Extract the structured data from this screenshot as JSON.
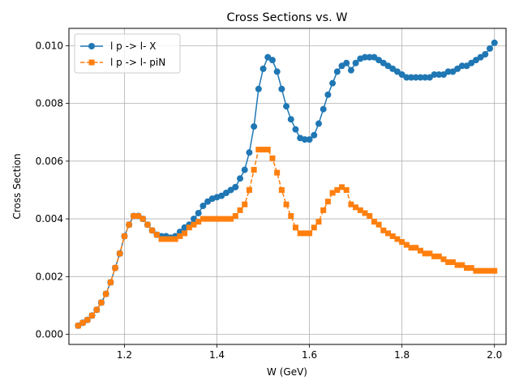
{
  "chart_data": {
    "type": "line",
    "title": "Cross Sections vs. W",
    "xlabel": "W (GeV)",
    "ylabel": "Cross Section",
    "xlim": [
      1.08,
      2.025
    ],
    "ylim": [
      -0.00035,
      0.0106
    ],
    "xticks": [
      1.2,
      1.4,
      1.6,
      1.8,
      2.0
    ],
    "xtick_labels": [
      "1.2",
      "1.4",
      "1.6",
      "1.8",
      "2.0"
    ],
    "yticks": [
      0.0,
      0.002,
      0.004,
      0.006,
      0.008,
      0.01
    ],
    "ytick_labels": [
      "0.000",
      "0.002",
      "0.004",
      "0.006",
      "0.008",
      "0.010"
    ],
    "grid": true,
    "legend": "top-left",
    "x": [
      1.1,
      1.11,
      1.12,
      1.13,
      1.14,
      1.15,
      1.16,
      1.17,
      1.18,
      1.19,
      1.2,
      1.21,
      1.22,
      1.23,
      1.24,
      1.25,
      1.26,
      1.27,
      1.28,
      1.29,
      1.3,
      1.31,
      1.32,
      1.33,
      1.34,
      1.35,
      1.36,
      1.37,
      1.38,
      1.39,
      1.4,
      1.41,
      1.42,
      1.43,
      1.44,
      1.45,
      1.46,
      1.47,
      1.48,
      1.49,
      1.5,
      1.51,
      1.52,
      1.53,
      1.54,
      1.55,
      1.56,
      1.57,
      1.58,
      1.59,
      1.6,
      1.61,
      1.62,
      1.63,
      1.64,
      1.65,
      1.66,
      1.67,
      1.68,
      1.69,
      1.7,
      1.71,
      1.72,
      1.73,
      1.74,
      1.75,
      1.76,
      1.77,
      1.78,
      1.79,
      1.8,
      1.81,
      1.82,
      1.83,
      1.84,
      1.85,
      1.86,
      1.87,
      1.88,
      1.89,
      1.9,
      1.91,
      1.92,
      1.93,
      1.94,
      1.95,
      1.96,
      1.97,
      1.98,
      1.99,
      2.0
    ],
    "series": [
      {
        "name": "l p -> l- X",
        "color": "#1f77b4",
        "marker": "circle",
        "linestyle": "solid",
        "values": [
          0.0003,
          0.0004,
          0.0005,
          0.00065,
          0.00085,
          0.0011,
          0.0014,
          0.0018,
          0.0023,
          0.0028,
          0.0034,
          0.0038,
          0.0041,
          0.0041,
          0.004,
          0.0038,
          0.0036,
          0.00345,
          0.0034,
          0.0034,
          0.00335,
          0.0034,
          0.00355,
          0.0037,
          0.0038,
          0.004,
          0.0042,
          0.00445,
          0.0046,
          0.0047,
          0.00475,
          0.0048,
          0.0049,
          0.005,
          0.0051,
          0.0054,
          0.0057,
          0.0063,
          0.0072,
          0.0085,
          0.0092,
          0.0096,
          0.0095,
          0.0091,
          0.0085,
          0.0079,
          0.00745,
          0.0071,
          0.0068,
          0.00675,
          0.00675,
          0.0069,
          0.0073,
          0.0078,
          0.0083,
          0.0087,
          0.0091,
          0.0093,
          0.0094,
          0.00915,
          0.0094,
          0.00955,
          0.0096,
          0.0096,
          0.0096,
          0.0095,
          0.0094,
          0.0093,
          0.0092,
          0.0091,
          0.009,
          0.0089,
          0.0089,
          0.0089,
          0.0089,
          0.0089,
          0.0089,
          0.009,
          0.009,
          0.009,
          0.0091,
          0.0091,
          0.0092,
          0.0093,
          0.0093,
          0.0094,
          0.0095,
          0.0096,
          0.0097,
          0.0099,
          0.0101
        ]
      },
      {
        "name": "l p -> l- piN",
        "color": "#ff7f0e",
        "marker": "square",
        "linestyle": "dashed",
        "values": [
          0.0003,
          0.0004,
          0.0005,
          0.00065,
          0.00085,
          0.0011,
          0.0014,
          0.0018,
          0.0023,
          0.0028,
          0.0034,
          0.0038,
          0.0041,
          0.0041,
          0.004,
          0.0038,
          0.0036,
          0.00345,
          0.0033,
          0.0033,
          0.0033,
          0.0033,
          0.0034,
          0.0035,
          0.0037,
          0.0038,
          0.0039,
          0.004,
          0.004,
          0.004,
          0.004,
          0.004,
          0.004,
          0.004,
          0.0041,
          0.0043,
          0.0045,
          0.005,
          0.0057,
          0.0064,
          0.0064,
          0.0064,
          0.0061,
          0.0056,
          0.005,
          0.0045,
          0.0041,
          0.0037,
          0.0035,
          0.0035,
          0.0035,
          0.0037,
          0.0039,
          0.0043,
          0.0046,
          0.0049,
          0.005,
          0.0051,
          0.005,
          0.0045,
          0.0044,
          0.0043,
          0.0042,
          0.0041,
          0.0039,
          0.0038,
          0.0036,
          0.0035,
          0.0034,
          0.0033,
          0.0032,
          0.0031,
          0.003,
          0.003,
          0.0029,
          0.0028,
          0.0028,
          0.0027,
          0.0027,
          0.0026,
          0.0025,
          0.0025,
          0.0024,
          0.0024,
          0.0023,
          0.0023,
          0.0022,
          0.0022,
          0.0022,
          0.0022,
          0.0022
        ]
      }
    ]
  }
}
